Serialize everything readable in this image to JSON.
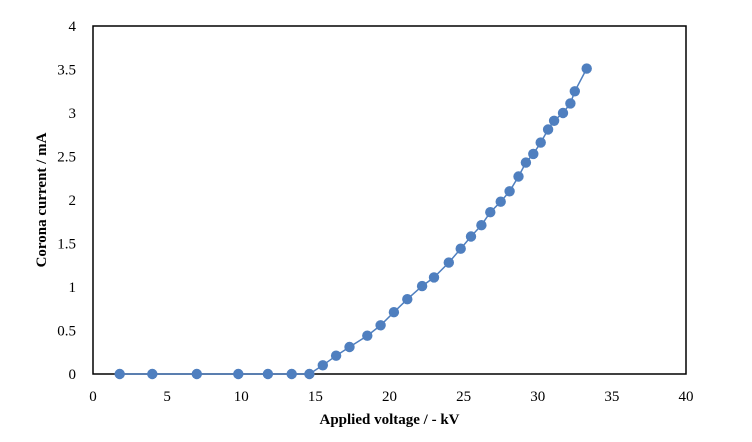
{
  "chart_data": {
    "type": "scatter",
    "xlabel": "Applied voltage / - kV",
    "ylabel": "Corona current / mA",
    "xlim": [
      0,
      40
    ],
    "ylim": [
      0,
      4
    ],
    "xticks": [
      0,
      5,
      10,
      15,
      20,
      25,
      30,
      35,
      40
    ],
    "yticks": [
      0,
      0.5,
      1,
      1.5,
      2,
      2.5,
      3,
      3.5,
      4
    ],
    "grid": false,
    "legend": "none",
    "marker_color": "#4F7FBF",
    "line_color": "#4F7FBF",
    "series": [
      {
        "x": [
          1.8,
          4.0,
          7.0,
          9.8,
          11.8,
          13.4,
          14.6,
          15.5,
          16.4,
          17.3,
          18.5,
          19.4,
          20.3,
          21.2,
          22.2,
          23.0,
          24.0,
          24.8,
          25.5,
          26.2,
          26.8,
          27.5,
          28.1,
          28.7,
          29.2,
          29.7,
          30.2,
          30.7,
          31.1,
          31.7,
          32.2,
          32.5,
          33.3
        ],
        "y": [
          0.0,
          0.0,
          0.0,
          0.0,
          0.0,
          0.0,
          0.0,
          0.1,
          0.21,
          0.31,
          0.44,
          0.56,
          0.71,
          0.86,
          1.01,
          1.11,
          1.28,
          1.44,
          1.58,
          1.71,
          1.86,
          1.98,
          2.1,
          2.27,
          2.43,
          2.53,
          2.66,
          2.81,
          2.91,
          3.0,
          3.11,
          3.25,
          3.51
        ]
      }
    ]
  }
}
